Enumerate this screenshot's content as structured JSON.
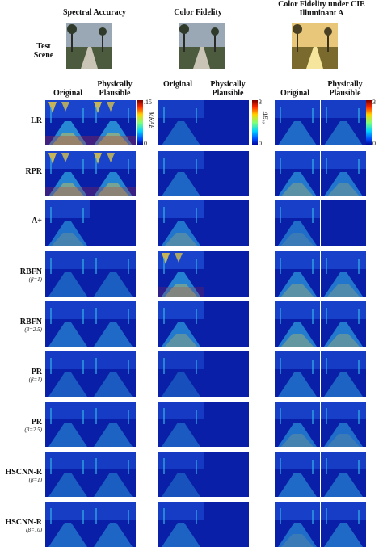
{
  "headers": {
    "spectral": "Spectral Accuracy",
    "color": "Color Fidelity",
    "illum": "Color Fidelity under CIE Illuminant A"
  },
  "test_scene_label": "Test Scene",
  "subheaders": {
    "original": "Original",
    "physical": "Physically Plausible"
  },
  "colorbars": {
    "mrae": {
      "max": ".15",
      "min": "0",
      "label": "MRAE"
    },
    "de": {
      "max": "3",
      "min": "0",
      "label": "ΔE₀₀"
    }
  },
  "rows": [
    {
      "name": "LR",
      "beta": ""
    },
    {
      "name": "RPR",
      "beta": ""
    },
    {
      "name": "A+",
      "beta": ""
    },
    {
      "name": "RBFN",
      "beta": "(β=1)"
    },
    {
      "name": "RBFN",
      "beta": "(β=2.5)"
    },
    {
      "name": "PR",
      "beta": "(β=1)"
    },
    {
      "name": "PR",
      "beta": "(β=2.5)"
    },
    {
      "name": "HSCNN-R",
      "beta": "(β=1)"
    },
    {
      "name": "HSCNN-R",
      "beta": "(β=10)"
    }
  ],
  "colors": {
    "deep_blue": "#0a1fa8",
    "mid_blue": "#1f4fd6",
    "cyan": "#33b5e6",
    "yellow": "#f0d23a",
    "red": "#c8231a",
    "sky_test": "#9aa7b4",
    "illum_tint": "#e8c77a"
  }
}
